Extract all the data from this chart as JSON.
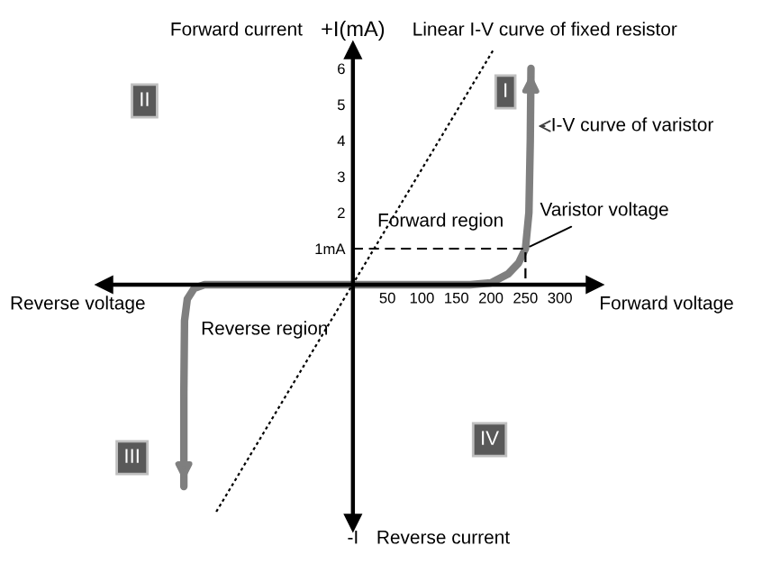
{
  "chart_data": {
    "type": "line",
    "xlabel": "Forward voltage",
    "ylabel": "+I(mA)",
    "xlim": [
      -360,
      350
    ],
    "ylim": [
      -6.6,
      6.5
    ],
    "xticks": [
      50,
      100,
      150,
      200,
      250,
      300
    ],
    "yticks": [
      {
        "value": 1,
        "label": "1mA"
      },
      2,
      3,
      4,
      5,
      6
    ],
    "grid": false,
    "series": [
      {
        "name": "I-V curve of varistor",
        "color": "#7f7f7f",
        "line_style": "solid",
        "x": [
          -245,
          -245,
          -244,
          -240,
          -230,
          -215,
          0,
          170,
          200,
          225,
          240,
          250,
          255,
          257,
          258
        ],
        "values": [
          -5.6,
          -3,
          -1,
          -0.4,
          -0.1,
          0,
          0,
          0,
          0.05,
          0.3,
          0.6,
          1,
          2,
          4,
          6
        ]
      },
      {
        "name": "Linear I-V curve of fixed resistor",
        "color": "#000000",
        "line_style": "dotted",
        "x": [
          -198,
          203
        ],
        "values": [
          -6.3,
          6.5
        ]
      },
      {
        "color": "#000000",
        "line_style": "dashed",
        "x": [
          0,
          250,
          250
        ],
        "values": [
          1,
          1,
          0
        ]
      }
    ],
    "annotations": [
      "Forward current",
      "Reverse voltage",
      "Reverse current",
      "-I",
      "Forward region",
      "Reverse region",
      "I",
      "II",
      "III",
      "IV",
      {
        "text": "Varistor voltage",
        "x": 250,
        "y": 1
      }
    ]
  }
}
